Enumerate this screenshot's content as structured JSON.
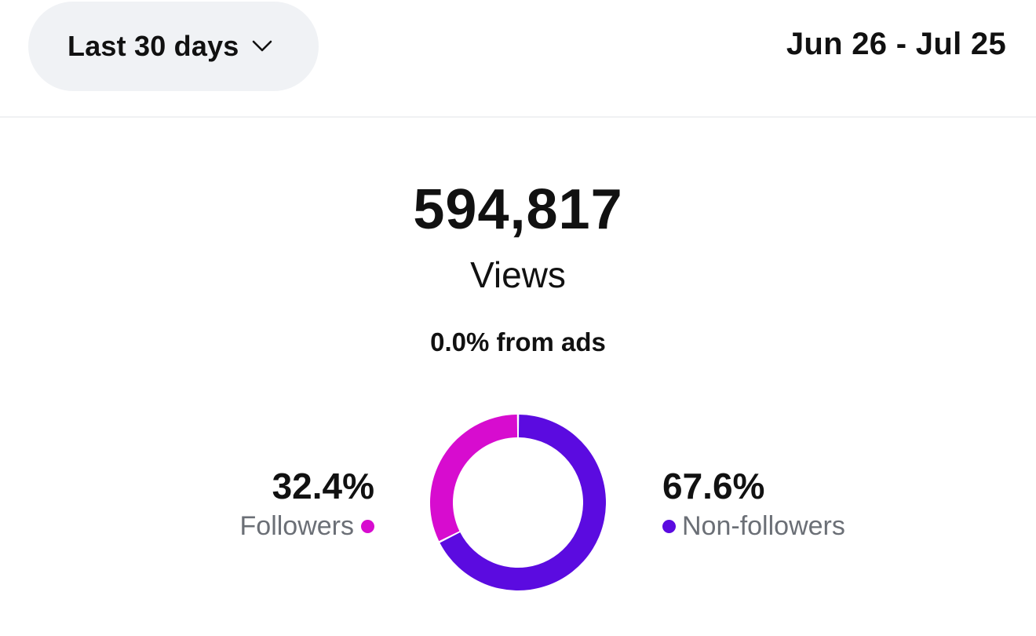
{
  "header": {
    "period_label": "Last 30 days",
    "date_range": "Jun 26 - Jul 25"
  },
  "summary": {
    "views_count": "594,817",
    "views_label": "Views",
    "ads_text": "0.0% from ads"
  },
  "audience": {
    "followers": {
      "value": "32.4%",
      "label": "Followers",
      "color": "#d70ccf"
    },
    "non_followers": {
      "value": "67.6%",
      "label": "Non-followers",
      "color": "#5b0be0"
    }
  },
  "chart_data": {
    "type": "pie",
    "categories": [
      "Followers",
      "Non-followers"
    ],
    "values": [
      32.4,
      67.6
    ],
    "colors": [
      "#d70ccf",
      "#5b0be0"
    ]
  }
}
